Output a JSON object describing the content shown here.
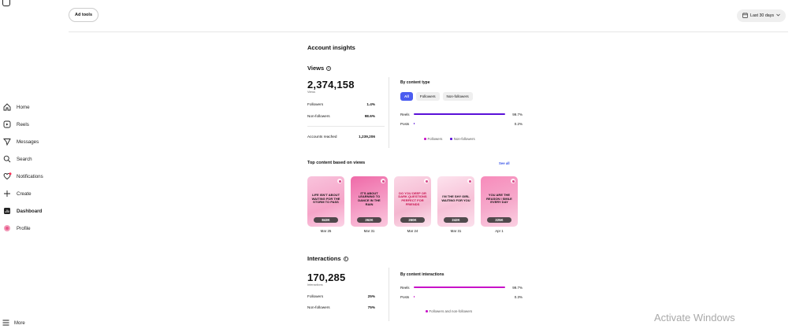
{
  "nav": {
    "items": [
      {
        "label": "Home",
        "icon": "home-icon"
      },
      {
        "label": "Reels",
        "icon": "reels-icon"
      },
      {
        "label": "Messages",
        "icon": "messages-icon"
      },
      {
        "label": "Search",
        "icon": "search-icon"
      },
      {
        "label": "Notifications",
        "icon": "heart-icon"
      },
      {
        "label": "Create",
        "icon": "plus-icon"
      },
      {
        "label": "Dashboard",
        "icon": "dashboard-icon"
      },
      {
        "label": "Profile",
        "icon": "avatar-icon"
      }
    ],
    "more_label": "More"
  },
  "topbar": {
    "ad_tools_label": "Ad tools",
    "date_range_label": "Last 30 days"
  },
  "page_title": "Account insights",
  "views": {
    "title": "Views",
    "total": "2,374,158",
    "total_caption": "Views",
    "rows": [
      {
        "label": "Followers",
        "value": "1.4%"
      },
      {
        "label": "Non-followers",
        "value": "98.6%"
      }
    ],
    "accounts_reached_label": "Accounts reached",
    "accounts_reached_value": "1,239,206",
    "by_type_title": "By content type",
    "filters": [
      "All",
      "Followers",
      "Non-followers"
    ],
    "bars": [
      {
        "label": "Reels",
        "value": "99.7%",
        "fraction": 0.997
      },
      {
        "label": "Posts",
        "value": "0.2%",
        "fraction": 0.002
      }
    ],
    "legend": [
      "Followers",
      "Non-followers"
    ]
  },
  "top_content": {
    "title": "Top content based on views",
    "see_all_label": "See all",
    "items": [
      {
        "text": "LIFE ISN'T ABOUT WAITING FOR THE STORM TO PASS",
        "count": "843K",
        "date": "Mar 25"
      },
      {
        "text": "IT'S ABOUT LEARNING TO DANCE IN THE RAIN",
        "count": "262K",
        "date": "Mar 31"
      },
      {
        "text": "DO YOU DEEP OR DARK QUESTIONS PERFECT FOR FRIENDS",
        "count": "260K",
        "date": "Mar 24"
      },
      {
        "text": "I'M THE SHY GIRL WAITING FOR YOU",
        "count": "242K",
        "date": "Mar 31"
      },
      {
        "text": "YOU ARE THE REASON I SMILE EVERY DAY",
        "count": "225K",
        "date": "Apr 1"
      }
    ]
  },
  "interactions": {
    "title": "Interactions",
    "total": "170,285",
    "total_caption": "Interactions",
    "rows": [
      {
        "label": "Followers",
        "value": "25%"
      },
      {
        "label": "Non-followers",
        "value": "75%"
      }
    ],
    "by_title": "By content interactions",
    "bars": [
      {
        "label": "Reels",
        "value": "99.7%",
        "fraction": 0.997
      },
      {
        "label": "Posts",
        "value": "0.3%",
        "fraction": 0.003
      }
    ],
    "legend": [
      "Followers and non-followers"
    ]
  },
  "watermark": "Activate Windows",
  "colors": {
    "accent_blue": "#4a5cf0",
    "views_bar": "#5a10d8",
    "interactions_bar": "#c812c8",
    "followers_dot": "#c812c8",
    "nonfollowers_dot": "#5a10d8"
  }
}
